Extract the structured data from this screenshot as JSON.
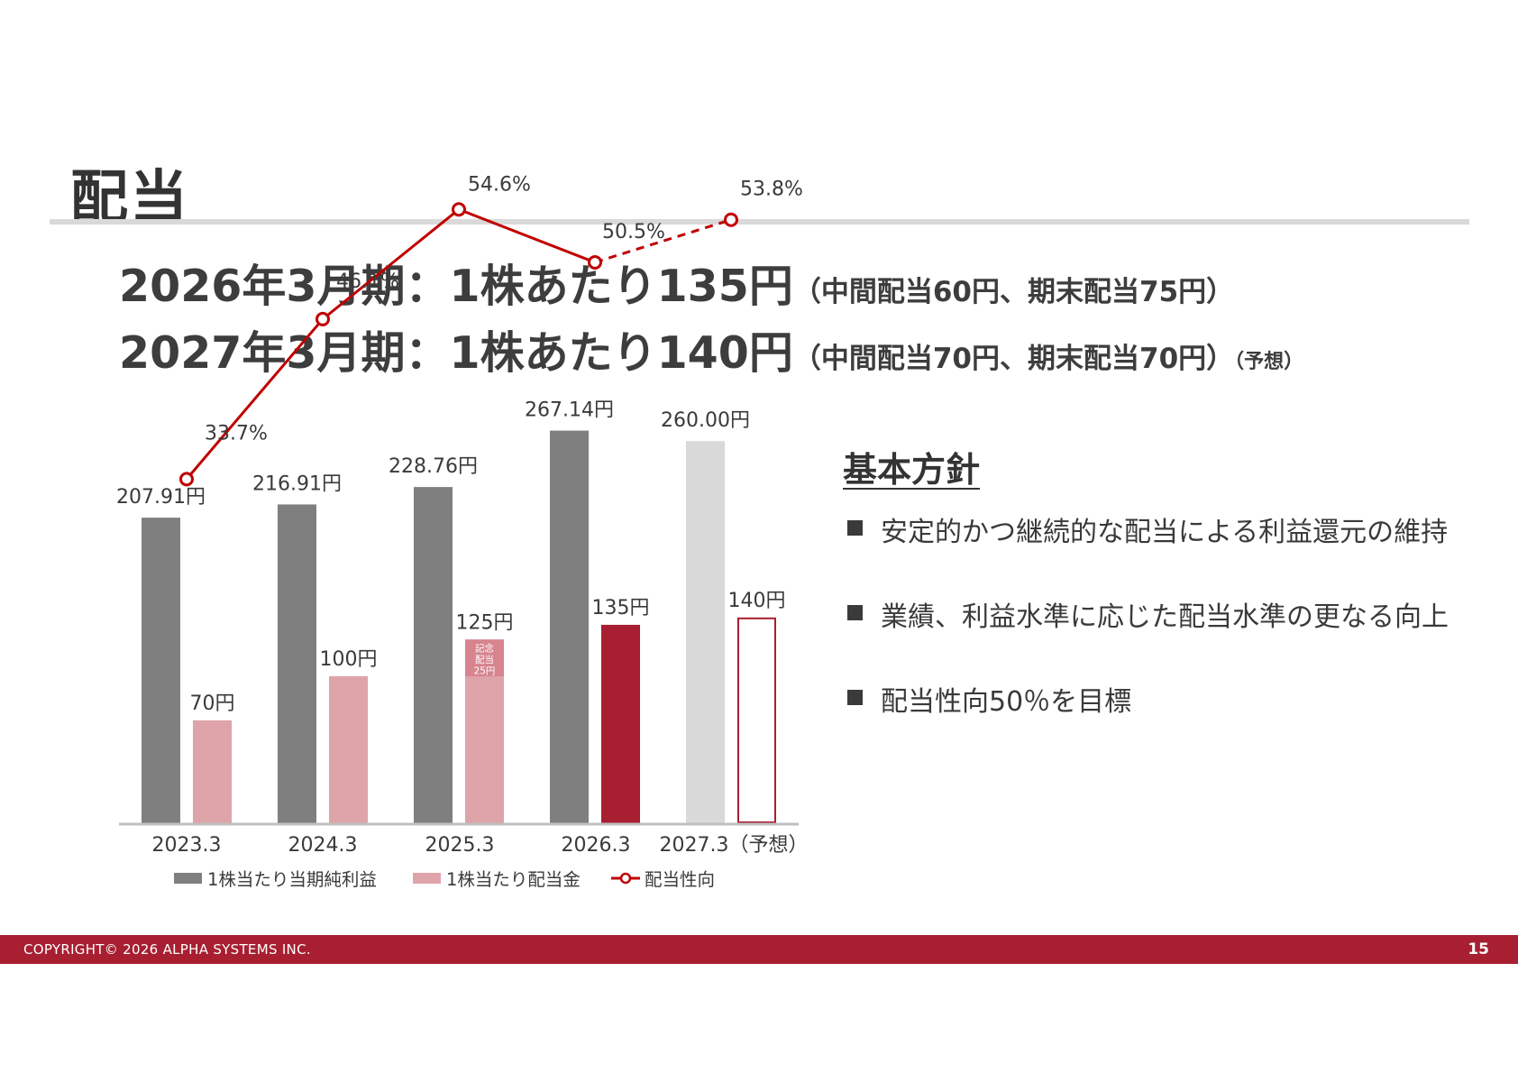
{
  "page": {
    "title": "配当",
    "headline1": {
      "main": "2026年3月期：1株あたり135円",
      "note": "（中間配当60円、期末配当75円）"
    },
    "headline2": {
      "main": "2027年3月期：1株あたり140円",
      "note": "（中間配当70円、期末配当70円）",
      "suffix": "（予想）"
    }
  },
  "policy": {
    "title": "基本方針",
    "items": [
      "安定的かつ継続的な配当による利益還元の維持",
      "業績、利益水準に応じた配当水準の更なる向上",
      "配当性向50％を目標"
    ]
  },
  "footer": {
    "copyright": "COPYRIGHT© 2026 ALPHA SYSTEMS INC.",
    "page_number": "15"
  },
  "chart_data": {
    "type": "bar",
    "categories": [
      "2023.3",
      "2024.3",
      "2025.3",
      "2026.3",
      "2027.3（予想）"
    ],
    "series": [
      {
        "name": "1株当たり当期純利益",
        "kind": "bar",
        "values": [
          207.91,
          216.91,
          228.76,
          267.14,
          260.0
        ],
        "labels": [
          "207.91円",
          "216.91円",
          "228.76円",
          "267.14円",
          "260.00円"
        ]
      },
      {
        "name": "1株当たり配当金",
        "kind": "bar",
        "values": [
          70,
          100,
          125,
          135,
          140
        ],
        "labels": [
          "70円",
          "100円",
          "125円",
          "135円",
          "140円"
        ]
      },
      {
        "name": "配当性向",
        "kind": "line",
        "values": [
          33.7,
          46.1,
          54.6,
          50.5,
          53.8
        ],
        "labels": [
          "33.7%",
          "46.1%",
          "54.6%",
          "50.5%",
          "53.8%"
        ]
      }
    ],
    "commemorative_dividend": {
      "category_index": 2,
      "value": 25,
      "label": [
        "記念",
        "配当",
        "25円"
      ]
    },
    "forecast_index": 4,
    "ylim": [
      0,
      270
    ],
    "colors": {
      "eps": "#7f7f7f",
      "eps_forecast": "#d9d9d9",
      "dividend": "#dfa3aa",
      "dividend_commemorative": "#d7848f",
      "dividend_current": "#a71f31",
      "dividend_forecast_outline": "#a71f31",
      "payout_line": "#c00000"
    },
    "legend_position": "bottom"
  }
}
